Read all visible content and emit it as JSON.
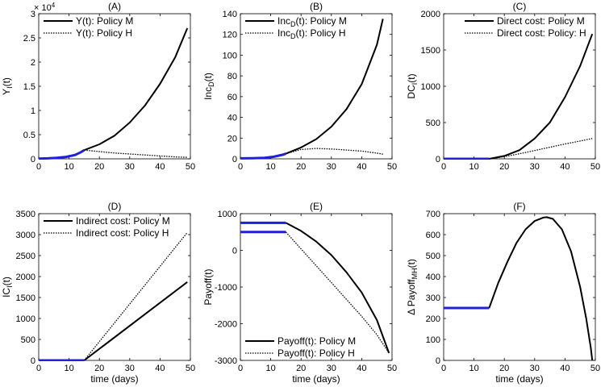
{
  "chart_data": [
    {
      "id": "A",
      "type": "line",
      "title": "(A)",
      "xlabel": "",
      "ylabel": "Y_I(t)",
      "yexponent": "× 10^4",
      "xlim": [
        0,
        50
      ],
      "ylim": [
        0,
        3
      ],
      "xticks": [
        0,
        10,
        20,
        30,
        40,
        50
      ],
      "yticks": [
        0,
        0.5,
        1,
        1.5,
        2,
        2.5,
        3
      ],
      "ytick_labels": [
        "0",
        "0.5",
        "1",
        "1.5",
        "2",
        "2.5",
        "3"
      ],
      "legend_position": "top-left",
      "pre_segment": {
        "color": "#1f1fdd",
        "x": [
          0,
          3,
          6,
          9,
          12,
          14,
          15
        ],
        "y": [
          0.005,
          0.01,
          0.02,
          0.04,
          0.08,
          0.14,
          0.18
        ]
      },
      "series": [
        {
          "name": "Y(t): Policy M",
          "style": "solid",
          "x": [
            15,
            20,
            25,
            30,
            35,
            40,
            45,
            49
          ],
          "y": [
            0.18,
            0.3,
            0.48,
            0.75,
            1.1,
            1.55,
            2.1,
            2.7
          ]
        },
        {
          "name": "Y(t): Policy H",
          "style": "dotted",
          "x": [
            15,
            20,
            25,
            30,
            35,
            40,
            45,
            49
          ],
          "y": [
            0.18,
            0.15,
            0.12,
            0.1,
            0.08,
            0.06,
            0.04,
            0.03
          ]
        }
      ]
    },
    {
      "id": "B",
      "type": "line",
      "title": "(B)",
      "xlabel": "",
      "ylabel": "Inc_D(t)",
      "xlim": [
        0,
        50
      ],
      "ylim": [
        0,
        140
      ],
      "xticks": [
        0,
        10,
        20,
        30,
        40,
        50
      ],
      "yticks": [
        0,
        20,
        40,
        60,
        80,
        100,
        120,
        140
      ],
      "ytick_labels": [
        "0",
        "20",
        "40",
        "60",
        "80",
        "100",
        "120",
        "140"
      ],
      "legend_position": "top-left",
      "pre_segment": {
        "color": "#1f1fdd",
        "x": [
          0,
          4,
          8,
          11,
          14,
          15
        ],
        "y": [
          0.5,
          0.6,
          1,
          2,
          4,
          5
        ]
      },
      "series": [
        {
          "name": "Inc_D(t): Policy M",
          "style": "solid",
          "x": [
            15,
            20,
            25,
            30,
            35,
            40,
            45,
            47
          ],
          "y": [
            5,
            11,
            19,
            31,
            48,
            72,
            110,
            135
          ]
        },
        {
          "name": "Inc_D(t): Policy H",
          "style": "dotted",
          "x": [
            15,
            20,
            25,
            30,
            35,
            40,
            45,
            47
          ],
          "y": [
            5,
            9,
            10,
            9.5,
            8.5,
            7.5,
            5.5,
            4.5
          ]
        }
      ]
    },
    {
      "id": "C",
      "type": "line",
      "title": "(C)",
      "xlabel": "",
      "ylabel": "DC_I(t)",
      "xlim": [
        0,
        50
      ],
      "ylim": [
        0,
        2000
      ],
      "xticks": [
        0,
        10,
        20,
        30,
        40,
        50
      ],
      "yticks": [
        0,
        500,
        1000,
        1500,
        2000
      ],
      "ytick_labels": [
        "0",
        "500",
        "1000",
        "1500",
        "2000"
      ],
      "legend_position": "top-right",
      "pre_segment": {
        "color": "#1f1fdd",
        "x": [
          0,
          15
        ],
        "y": [
          0,
          0
        ]
      },
      "series": [
        {
          "name": "Direct cost: Policy M",
          "style": "solid",
          "x": [
            15,
            20,
            25,
            30,
            35,
            40,
            45,
            49
          ],
          "y": [
            0,
            40,
            120,
            280,
            500,
            850,
            1280,
            1720
          ]
        },
        {
          "name": "Direct cost: Policy: H",
          "style": "dotted",
          "x": [
            15,
            20,
            25,
            30,
            35,
            40,
            45,
            49
          ],
          "y": [
            0,
            30,
            70,
            115,
            160,
            205,
            245,
            280
          ]
        }
      ]
    },
    {
      "id": "D",
      "type": "line",
      "title": "(D)",
      "xlabel": "time (days)",
      "ylabel": "IC_I(t)",
      "xlim": [
        0,
        50
      ],
      "ylim": [
        0,
        3500
      ],
      "xticks": [
        0,
        10,
        20,
        30,
        40,
        50
      ],
      "yticks": [
        0,
        500,
        1000,
        1500,
        2000,
        2500,
        3000,
        3500
      ],
      "ytick_labels": [
        "0",
        "500",
        "1000",
        "1500",
        "2000",
        "2500",
        "3000",
        "3500"
      ],
      "legend_position": "top-left",
      "pre_segment": {
        "color": "#1f1fdd",
        "x": [
          0,
          15
        ],
        "y": [
          0,
          0
        ]
      },
      "series": [
        {
          "name": "Indirect cost: Policy M",
          "style": "solid",
          "x": [
            15,
            49
          ],
          "y": [
            0,
            1870
          ]
        },
        {
          "name": "Indirect cost: Policy H",
          "style": "dotted",
          "x": [
            15,
            49
          ],
          "y": [
            0,
            3050
          ]
        }
      ]
    },
    {
      "id": "E",
      "type": "line",
      "title": "(E)",
      "xlabel": "time (days)",
      "ylabel": "Payoff(t)",
      "xlim": [
        0,
        50
      ],
      "ylim": [
        -3000,
        1000
      ],
      "xticks": [
        0,
        10,
        20,
        30,
        40,
        50
      ],
      "yticks": [
        -3000,
        -2000,
        -1000,
        0,
        1000
      ],
      "ytick_labels": [
        "-3000",
        "-2000",
        "-1000",
        "0",
        "1000"
      ],
      "legend_position": "bottom-left",
      "pre_segments": [
        {
          "color": "#1f1fdd",
          "x": [
            0,
            15
          ],
          "y": [
            750,
            750
          ]
        },
        {
          "color": "#1f1fdd",
          "x": [
            0,
            15
          ],
          "y": [
            500,
            500
          ]
        }
      ],
      "series": [
        {
          "name": "Payoff(t): Policy M",
          "style": "solid",
          "x": [
            15,
            20,
            25,
            30,
            35,
            40,
            45,
            49
          ],
          "y": [
            750,
            530,
            240,
            -130,
            -600,
            -1150,
            -1900,
            -2800
          ]
        },
        {
          "name": "Payoff(t): Policy H",
          "style": "dotted",
          "x": [
            15,
            20,
            25,
            30,
            35,
            40,
            45,
            49
          ],
          "y": [
            500,
            40,
            -420,
            -880,
            -1340,
            -1800,
            -2300,
            -2800
          ]
        }
      ]
    },
    {
      "id": "F",
      "type": "line",
      "title": "(F)",
      "xlabel": "time (days)",
      "ylabel": "Δ Payoff_MH(t)",
      "xlim": [
        0,
        50
      ],
      "ylim": [
        0,
        700
      ],
      "xticks": [
        0,
        10,
        20,
        30,
        40,
        50
      ],
      "yticks": [
        0,
        100,
        200,
        300,
        400,
        500,
        600,
        700
      ],
      "ytick_labels": [
        "0",
        "100",
        "200",
        "300",
        "400",
        "500",
        "600",
        "700"
      ],
      "legend_position": "none",
      "pre_segment": {
        "color": "#1f1fdd",
        "x": [
          0,
          15
        ],
        "y": [
          250,
          250
        ]
      },
      "series": [
        {
          "name": "",
          "style": "solid",
          "x": [
            15,
            18,
            21,
            24,
            27,
            30,
            33,
            34,
            36,
            39,
            42,
            45,
            47,
            48.5,
            49
          ],
          "y": [
            250,
            370,
            470,
            560,
            625,
            665,
            682,
            683,
            675,
            625,
            520,
            350,
            200,
            60,
            0
          ]
        }
      ]
    }
  ]
}
